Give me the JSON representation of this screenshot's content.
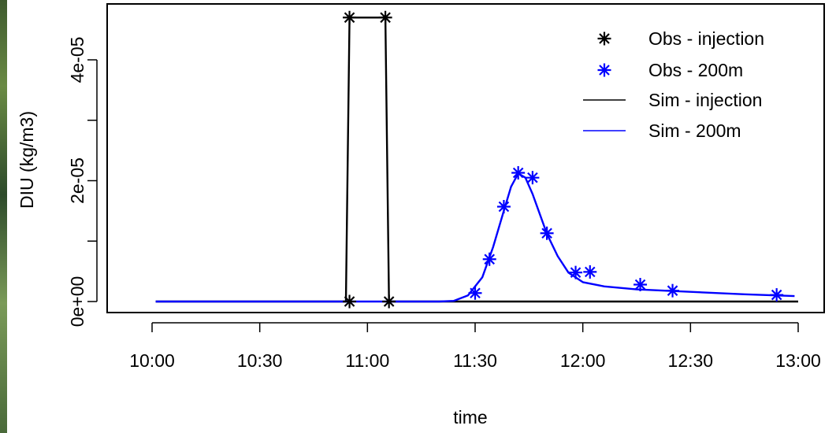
{
  "chart_data": {
    "type": "line",
    "title": "",
    "xlabel": "time",
    "ylabel": "DIU (kg/m3)",
    "x_ticks": [
      "10:00",
      "10:30",
      "11:00",
      "11:30",
      "12:00",
      "12:30",
      "13:00"
    ],
    "y_ticks": [
      "0e+00",
      "2e-05",
      "4e-05"
    ],
    "y_tick_values": [
      0,
      1e-05,
      2e-05,
      3e-05,
      4e-05
    ],
    "xlim": [
      "10:00",
      "13:00"
    ],
    "ylim": [
      0,
      4.75e-05
    ],
    "grid": false,
    "legend_position": "top-right",
    "series": [
      {
        "name": "Obs - injection",
        "kind": "points",
        "marker": "asterisk",
        "color": "#000000",
        "points": [
          [
            "10:55",
            0
          ],
          [
            "10:55",
            4.7e-05
          ],
          [
            "11:05",
            4.7e-05
          ],
          [
            "11:06",
            0
          ]
        ]
      },
      {
        "name": "Obs - 200m",
        "kind": "points",
        "marker": "asterisk",
        "color": "#0000ff",
        "points": [
          [
            "11:30",
            1.4e-06
          ],
          [
            "11:34",
            7e-06
          ],
          [
            "11:38",
            1.57e-05
          ],
          [
            "11:42",
            2.13e-05
          ],
          [
            "11:46",
            2.05e-05
          ],
          [
            "11:50",
            1.13e-05
          ],
          [
            "11:58",
            4.8e-06
          ],
          [
            "12:02",
            4.9e-06
          ],
          [
            "12:16",
            2.8e-06
          ],
          [
            "12:25",
            1.8e-06
          ],
          [
            "12:54",
            1.1e-06
          ]
        ]
      },
      {
        "name": "Sim - injection",
        "kind": "line",
        "color": "#000000",
        "points": [
          [
            "10:01",
            0
          ],
          [
            "10:54",
            0
          ],
          [
            "10:55",
            4.7e-05
          ],
          [
            "11:05",
            4.7e-05
          ],
          [
            "11:06",
            0
          ],
          [
            "13:00",
            0
          ]
        ]
      },
      {
        "name": "Sim - 200m",
        "kind": "line",
        "color": "#0000ff",
        "points": [
          [
            "10:01",
            0
          ],
          [
            "11:20",
            0
          ],
          [
            "11:24",
            1e-07
          ],
          [
            "11:28",
            1e-06
          ],
          [
            "11:32",
            4e-06
          ],
          [
            "11:35",
            9e-06
          ],
          [
            "11:38",
            1.5e-05
          ],
          [
            "11:40",
            1.9e-05
          ],
          [
            "11:42",
            2.12e-05
          ],
          [
            "11:44",
            2.05e-05
          ],
          [
            "11:46",
            1.78e-05
          ],
          [
            "11:48",
            1.45e-05
          ],
          [
            "11:50",
            1.12e-05
          ],
          [
            "11:53",
            7.5e-06
          ],
          [
            "11:56",
            4.8e-06
          ],
          [
            "12:00",
            3.2e-06
          ],
          [
            "12:06",
            2.5e-06
          ],
          [
            "12:15",
            2e-06
          ],
          [
            "12:30",
            1.6e-06
          ],
          [
            "12:45",
            1.2e-06
          ],
          [
            "12:59",
            9e-07
          ]
        ]
      }
    ]
  }
}
